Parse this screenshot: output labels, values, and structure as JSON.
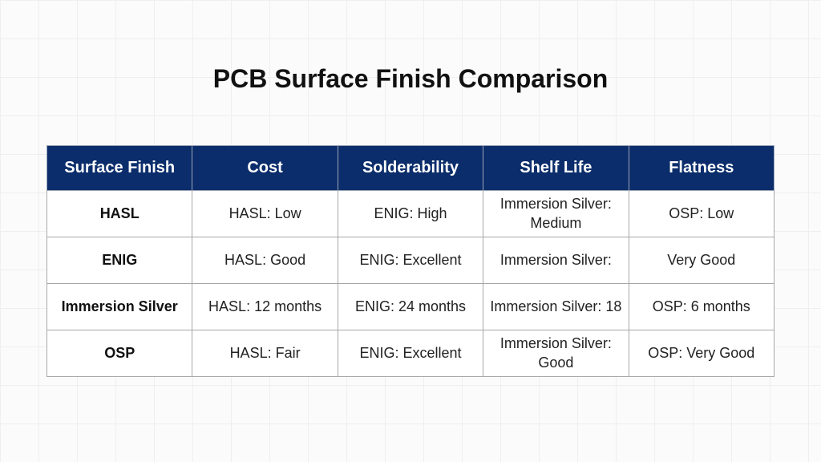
{
  "header": {
    "title": "PCB Surface Finish Comparison"
  },
  "table": {
    "columns": [
      "Surface Finish",
      "Cost",
      "Solderability",
      "Shelf Life",
      "Flatness"
    ],
    "rows": [
      [
        "HASL",
        "HASL: Low",
        "ENIG: High",
        "Immersion Silver: Medium",
        "OSP: Low"
      ],
      [
        "ENIG",
        "HASL: Good",
        "ENIG: Excellent",
        "Immersion Silver:",
        "Very Good"
      ],
      [
        "Immersion Silver",
        "HASL: 12 months",
        "ENIG: 24 months",
        "Immersion Silver: 18",
        "OSP: 6 months"
      ],
      [
        "OSP",
        "HASL: Fair",
        "ENIG: Excellent",
        "Immersion Silver: Good",
        "OSP: Very Good"
      ]
    ]
  }
}
